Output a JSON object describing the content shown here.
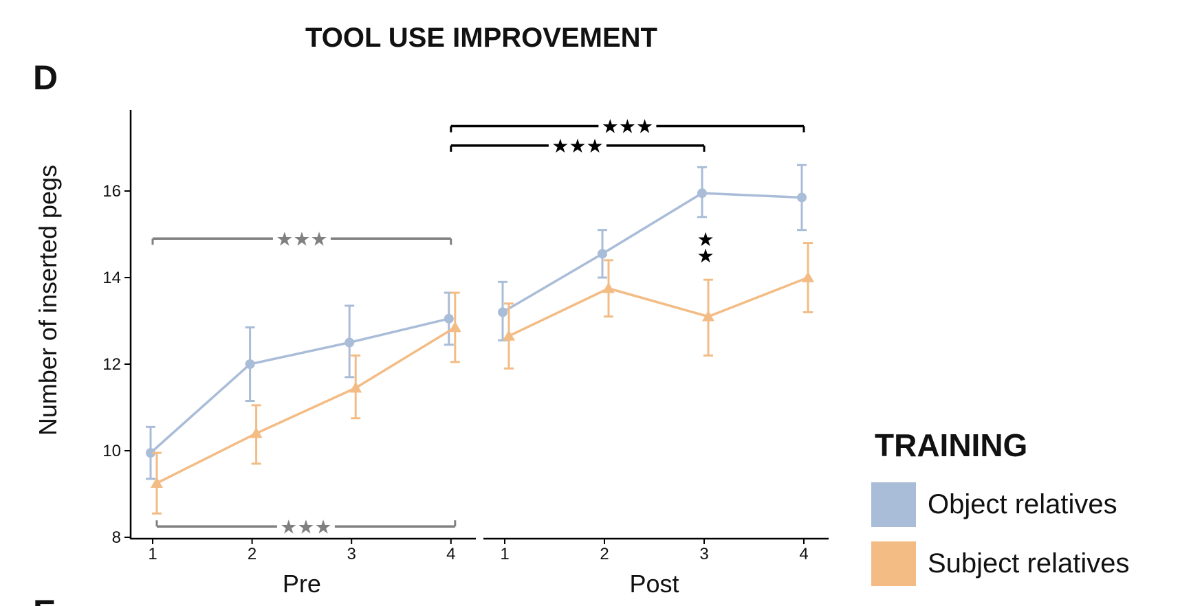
{
  "figure": {
    "title": "TOOL USE IMPROVEMENT",
    "panel_letter": "D",
    "next_panel_letter": "E"
  },
  "colors": {
    "object": "#a9bcd8",
    "subject": "#f3bc85",
    "bracket_gray": "#808080",
    "bracket_black": "#000000"
  },
  "chart_data": {
    "type": "line",
    "title": "TOOL USE IMPROVEMENT",
    "ylabel": "Number of inserted pegs",
    "xlabel": "",
    "ylim": [
      7.6,
      17.4
    ],
    "yticks": [
      8,
      10,
      12,
      14,
      16
    ],
    "grid": false,
    "facets": [
      {
        "name": "Pre",
        "x": [
          1,
          2,
          3,
          4
        ]
      },
      {
        "name": "Post",
        "x": [
          1,
          2,
          3,
          4
        ]
      }
    ],
    "legend": {
      "title": "TRAINING",
      "placement": "right"
    },
    "series": [
      {
        "name": "Object relatives",
        "marker": "circle",
        "color": "#a9bcd8",
        "pre": {
          "values": [
            9.95,
            12.0,
            12.5,
            13.05
          ],
          "lower": [
            9.35,
            11.15,
            11.7,
            12.45
          ],
          "upper": [
            10.55,
            12.85,
            13.35,
            13.65
          ]
        },
        "post": {
          "values": [
            13.2,
            14.55,
            15.95,
            15.85
          ],
          "lower": [
            12.55,
            14.0,
            15.4,
            15.1
          ],
          "upper": [
            13.9,
            15.1,
            16.55,
            16.6
          ]
        }
      },
      {
        "name": "Subject relatives",
        "marker": "triangle",
        "color": "#f3bc85",
        "pre": {
          "values": [
            9.25,
            10.4,
            11.45,
            12.85
          ],
          "lower": [
            8.55,
            9.7,
            10.75,
            12.05
          ],
          "upper": [
            9.95,
            11.05,
            12.2,
            13.65
          ]
        },
        "post": {
          "values": [
            12.65,
            13.75,
            13.1,
            14.0
          ],
          "lower": [
            11.9,
            13.1,
            12.2,
            13.2
          ],
          "upper": [
            13.4,
            14.4,
            13.95,
            14.8
          ]
        }
      }
    ],
    "annotations": [
      {
        "label": "★★★",
        "type": "bracket",
        "color": "gray",
        "from": [
          "Pre",
          1
        ],
        "to": [
          "Pre",
          4
        ],
        "y": 14.9,
        "series": "Object relatives"
      },
      {
        "label": "★★★",
        "type": "bracket",
        "color": "gray",
        "from": [
          "Pre",
          1
        ],
        "to": [
          "Pre",
          4
        ],
        "y": 8.25,
        "series": "Subject relatives",
        "position": "below"
      },
      {
        "label": "★★★",
        "type": "bracket",
        "color": "black",
        "from": [
          "Pre",
          4
        ],
        "to": [
          "Post",
          3
        ],
        "y": 17.05
      },
      {
        "label": "★★★",
        "type": "bracket",
        "color": "black",
        "from": [
          "Pre",
          4
        ],
        "to": [
          "Post",
          4
        ],
        "y": 17.5
      },
      {
        "label": "★★",
        "type": "marker",
        "at": [
          "Post",
          3
        ],
        "y": 14.7,
        "stacked": true
      }
    ]
  }
}
